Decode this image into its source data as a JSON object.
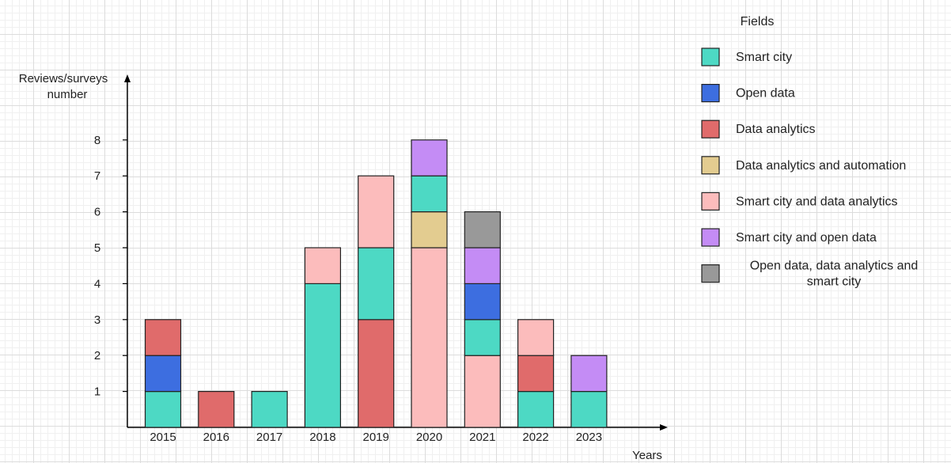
{
  "chart_data": {
    "type": "bar",
    "stacked": true,
    "ylabel": [
      "Reviews/surveys",
      "number"
    ],
    "xlabel": "Years",
    "legend_title": "Fields",
    "categories": [
      "2015",
      "2016",
      "2017",
      "2018",
      "2019",
      "2020",
      "2021",
      "2022",
      "2023"
    ],
    "yticks": [
      1,
      2,
      3,
      4,
      5,
      6,
      7,
      8
    ],
    "ylim": [
      0,
      9.5
    ],
    "series": [
      {
        "name": "Smart city",
        "color": "#4dd9c4",
        "values": [
          1,
          0,
          1,
          4,
          2,
          1,
          1,
          1,
          1
        ]
      },
      {
        "name": "Open data",
        "color": "#3d6ee0",
        "values": [
          1,
          0,
          0,
          0,
          0,
          0,
          1,
          0,
          0
        ]
      },
      {
        "name": "Data analytics",
        "color": "#e06b6b",
        "values": [
          1,
          1,
          0,
          0,
          3,
          0,
          0,
          1,
          0
        ]
      },
      {
        "name": "Data analytics and automation",
        "color": "#e3cc90",
        "values": [
          0,
          0,
          0,
          0,
          0,
          1,
          0,
          0,
          0
        ]
      },
      {
        "name": "Smart city and data analytics",
        "color": "#fcbcbc",
        "values": [
          0,
          0,
          0,
          1,
          2,
          5,
          2,
          1,
          0
        ]
      },
      {
        "name": "Smart city and open data",
        "color": "#c48cf5",
        "values": [
          0,
          0,
          0,
          0,
          0,
          1,
          1,
          0,
          1
        ]
      },
      {
        "name": "Open data, data analytics and smart city",
        "color": "#999999",
        "values": [
          0,
          0,
          0,
          0,
          0,
          0,
          1,
          0,
          0
        ]
      }
    ],
    "stack_order": [
      [
        0,
        1,
        2
      ],
      [
        2
      ],
      [
        0
      ],
      [
        0,
        4
      ],
      [
        2,
        0,
        4
      ],
      [
        4,
        3,
        0,
        5
      ],
      [
        4,
        0,
        1,
        5,
        6
      ],
      [
        0,
        2,
        4
      ],
      [
        0,
        5
      ]
    ],
    "legend_labels": [
      [
        "Smart city"
      ],
      [
        "Open data"
      ],
      [
        "Data analytics"
      ],
      [
        "Data analytics and automation"
      ],
      [
        "Smart city and data analytics"
      ],
      [
        "Smart city and open data"
      ],
      [
        "Open data, data analytics and",
        "smart city"
      ]
    ]
  }
}
